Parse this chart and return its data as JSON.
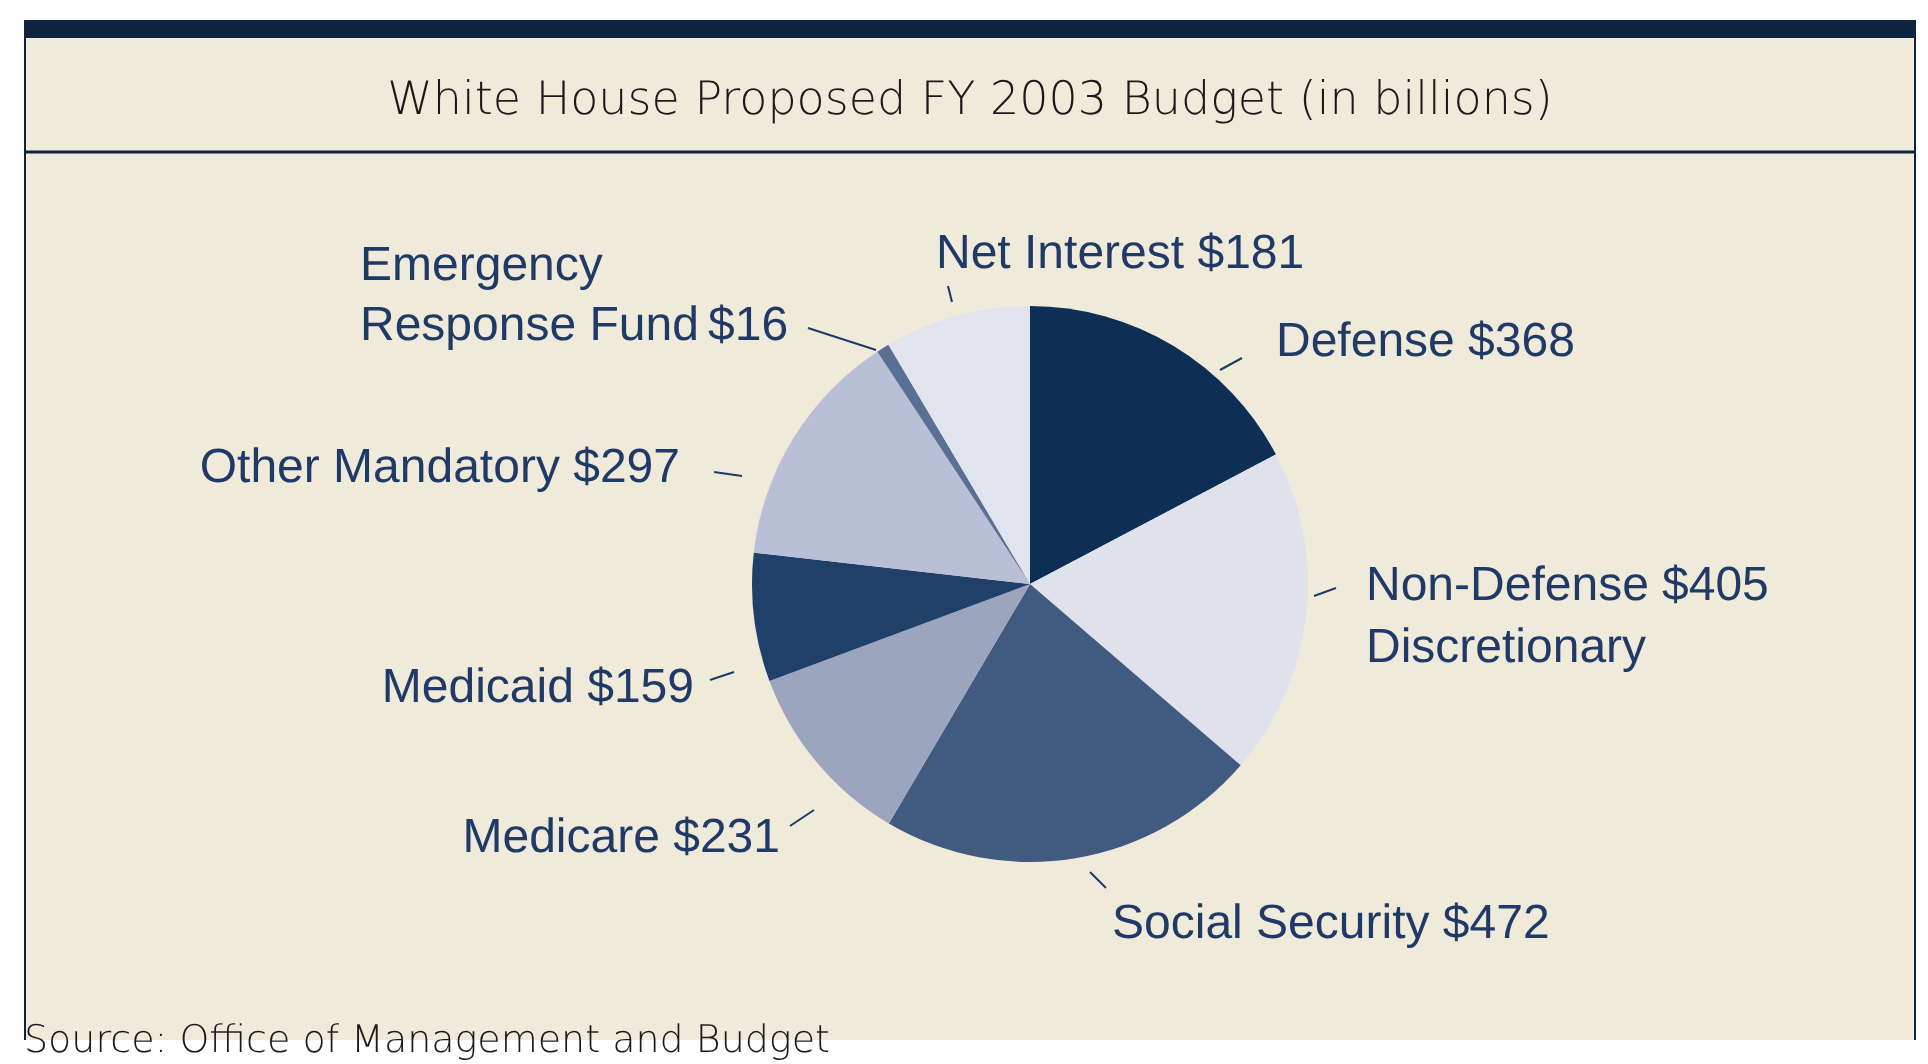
{
  "chart_data": {
    "type": "pie",
    "title": "White House Proposed FY 2003 Budget (in billions)",
    "categories": [
      "Defense",
      "Non-Defense Discretionary",
      "Social Security",
      "Medicare",
      "Medicaid",
      "Other Mandatory",
      "Emergency Response Fund",
      "Net Interest"
    ],
    "values": [
      368,
      405,
      472,
      231,
      159,
      297,
      16,
      181
    ],
    "value_labels": [
      "$368",
      "$405",
      "$472",
      "$231",
      "$159",
      "$297",
      "$16",
      "$181"
    ],
    "colors": [
      "#0d2f55",
      "#dfe1ec",
      "#415a80",
      "#9ba6be",
      "#1f4068",
      "#b9bfd6",
      "#5a6f94",
      "#e1e3ee"
    ],
    "annotations": [
      "Source: Office of Management and Budget"
    ]
  }
}
